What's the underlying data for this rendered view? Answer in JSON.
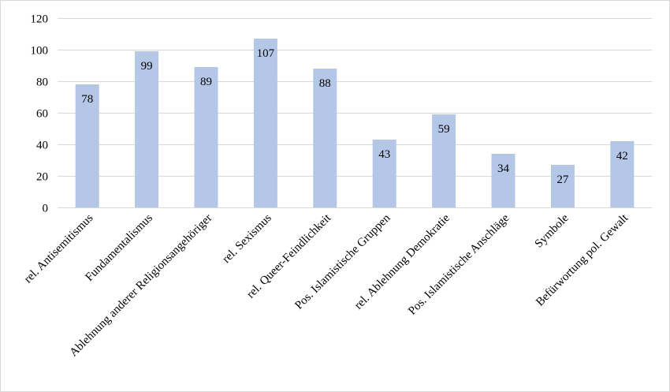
{
  "chart_data": {
    "type": "bar",
    "title": "",
    "xlabel": "",
    "ylabel": "",
    "categories": [
      "rel. Antisemitismus",
      "Fundamentalismus",
      "Ablehnung anderer Religionsangehöriger",
      "rel. Sexismus",
      "rel. Queer-Feindlichkeit",
      "Pos. Islamistische Gruppen",
      "rel. Ablehnung Demokratie",
      "Pos. Islamistische Anschläge",
      "Symbole",
      "Befürwortung pol. Gewalt"
    ],
    "values": [
      78,
      99,
      89,
      107,
      88,
      43,
      59,
      34,
      27,
      42
    ],
    "ylim": [
      0,
      120
    ],
    "yticks": [
      0,
      20,
      40,
      60,
      80,
      100,
      120
    ],
    "grid": true,
    "legend": "none",
    "colors": {
      "bar": "#b4c7e7",
      "grid": "#d9d9d9",
      "text": "#000000"
    }
  }
}
